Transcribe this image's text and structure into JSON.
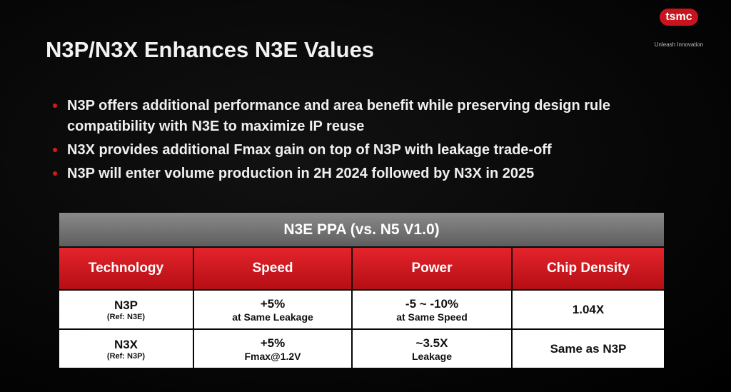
{
  "logo": {
    "mark": "tsmc",
    "tagline": "Unleash Innovation"
  },
  "title": "N3P/N3X Enhances N3E Values",
  "bullets": [
    "N3P offers additional performance and area benefit while preserving design rule compatibility with N3E to maximize IP reuse",
    "N3X provides additional Fmax gain on top of N3P with leakage trade-off",
    "N3P will enter volume production in 2H 2024 followed by N3X in 2025"
  ],
  "table": {
    "title": "N3E PPA (vs. N5 V1.0)",
    "headers": [
      "Technology",
      "Speed",
      "Power",
      "Chip Density"
    ],
    "rows": [
      [
        [
          "N3P",
          "(Ref: N3E)"
        ],
        [
          "+5%",
          "at Same Leakage"
        ],
        [
          "-5 ~ -10%",
          "at Same Speed"
        ],
        [
          "1.04X"
        ]
      ],
      [
        [
          "N3X",
          "(Ref: N3P)"
        ],
        [
          "+5%",
          "Fmax@1.2V"
        ],
        [
          "~3.5X",
          "Leakage"
        ],
        [
          "Same as N3P"
        ]
      ]
    ]
  }
}
